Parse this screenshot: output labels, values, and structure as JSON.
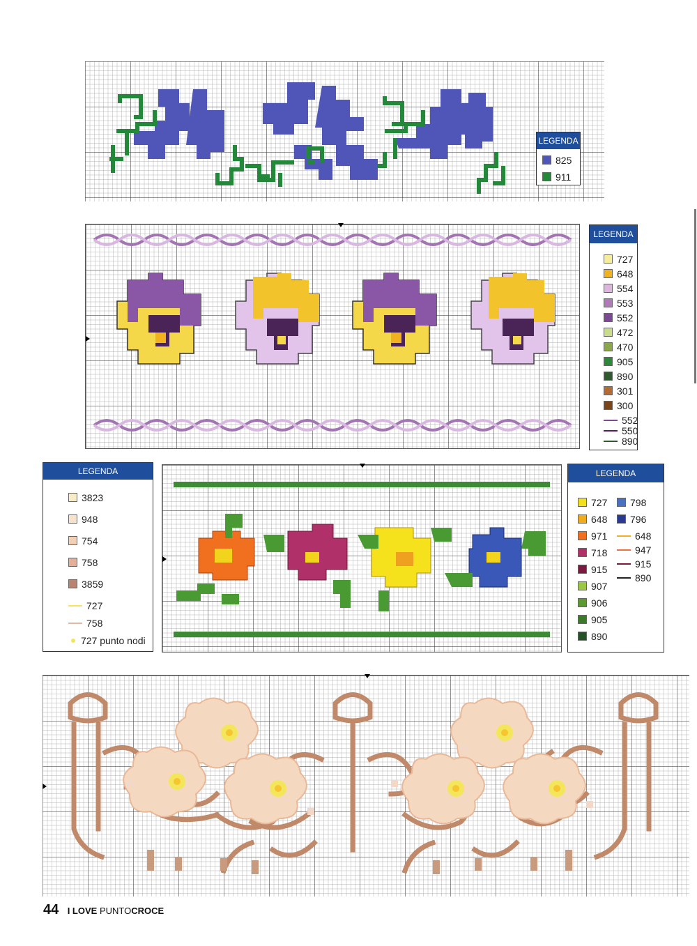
{
  "charts": {
    "violets": {
      "legend": {
        "title": "LEGENDA",
        "items": [
          {
            "code": "825",
            "color": "#5055b8",
            "kind": "swatch"
          },
          {
            "code": "911",
            "color": "#24883a",
            "kind": "swatch"
          }
        ]
      }
    },
    "pansies": {
      "legend": {
        "title": "LEGENDA",
        "items": [
          {
            "code": "727",
            "color": "#f7ec97",
            "kind": "swatch"
          },
          {
            "code": "648",
            "color": "#f2b21d",
            "kind": "swatch"
          },
          {
            "code": "554",
            "color": "#dcb6dc",
            "kind": "swatch"
          },
          {
            "code": "553",
            "color": "#b07ab8",
            "kind": "swatch"
          },
          {
            "code": "552",
            "color": "#7c4a95",
            "kind": "swatch"
          },
          {
            "code": "472",
            "color": "#c8dc8a",
            "kind": "swatch"
          },
          {
            "code": "470",
            "color": "#8aa84a",
            "kind": "swatch"
          },
          {
            "code": "905",
            "color": "#2a8a3a",
            "kind": "swatch"
          },
          {
            "code": "890",
            "color": "#2e5a2e",
            "kind": "swatch"
          },
          {
            "code": "301",
            "color": "#b46a30",
            "kind": "swatch"
          },
          {
            "code": "300",
            "color": "#7a4518",
            "kind": "swatch"
          },
          {
            "code": "552",
            "color": "#7c4a95",
            "kind": "line"
          },
          {
            "code": "550",
            "color": "#4e2060",
            "kind": "line"
          },
          {
            "code": "890",
            "color": "#2e5a2e",
            "kind": "line"
          }
        ]
      }
    },
    "primroses": {
      "legend_left": {
        "title": "LEGENDA",
        "items": [
          {
            "code": "3823",
            "color": "#f6ecc8",
            "kind": "swatch"
          },
          {
            "code": "948",
            "color": "#f7e2cc",
            "kind": "swatch"
          },
          {
            "code": "754",
            "color": "#f3cfb4",
            "kind": "swatch"
          },
          {
            "code": "758",
            "color": "#e6ae94",
            "kind": "swatch"
          },
          {
            "code": "3859",
            "color": "#b98271",
            "kind": "swatch"
          },
          {
            "code": "727",
            "color": "#f4e35c",
            "kind": "line"
          },
          {
            "code": "758",
            "color": "#e0b8a4",
            "kind": "line"
          },
          {
            "code": "727 punto nodi",
            "color": "#f4e35c",
            "kind": "dot"
          }
        ]
      },
      "legend_right": {
        "title": "LEGENDA",
        "col1": [
          {
            "code": "727",
            "color": "#f2e01c",
            "kind": "swatch"
          },
          {
            "code": "648",
            "color": "#f0ac1c",
            "kind": "swatch"
          },
          {
            "code": "971",
            "color": "#f07020",
            "kind": "swatch"
          },
          {
            "code": "718",
            "color": "#b0306a",
            "kind": "swatch"
          },
          {
            "code": "915",
            "color": "#7a1a40",
            "kind": "swatch"
          },
          {
            "code": "907",
            "color": "#9cc844",
            "kind": "swatch"
          },
          {
            "code": "906",
            "color": "#5a9a30",
            "kind": "swatch"
          },
          {
            "code": "905",
            "color": "#3c7a2a",
            "kind": "swatch"
          },
          {
            "code": "890",
            "color": "#225226",
            "kind": "swatch"
          }
        ],
        "col2": [
          {
            "code": "798",
            "color": "#4a70c0",
            "kind": "swatch"
          },
          {
            "code": "796",
            "color": "#2a3a90",
            "kind": "swatch"
          },
          {
            "code": "648",
            "color": "#f0b020",
            "kind": "line"
          },
          {
            "code": "947",
            "color": "#f07040",
            "kind": "line"
          },
          {
            "code": "915",
            "color": "#7a1a40",
            "kind": "line"
          },
          {
            "code": "890",
            "color": "#222222",
            "kind": "line"
          }
        ]
      }
    }
  },
  "footer": {
    "page_number": "44",
    "brand_prefix": "I LOVE ",
    "brand_middle": "PUNTO",
    "brand_suffix": "CROCE"
  }
}
